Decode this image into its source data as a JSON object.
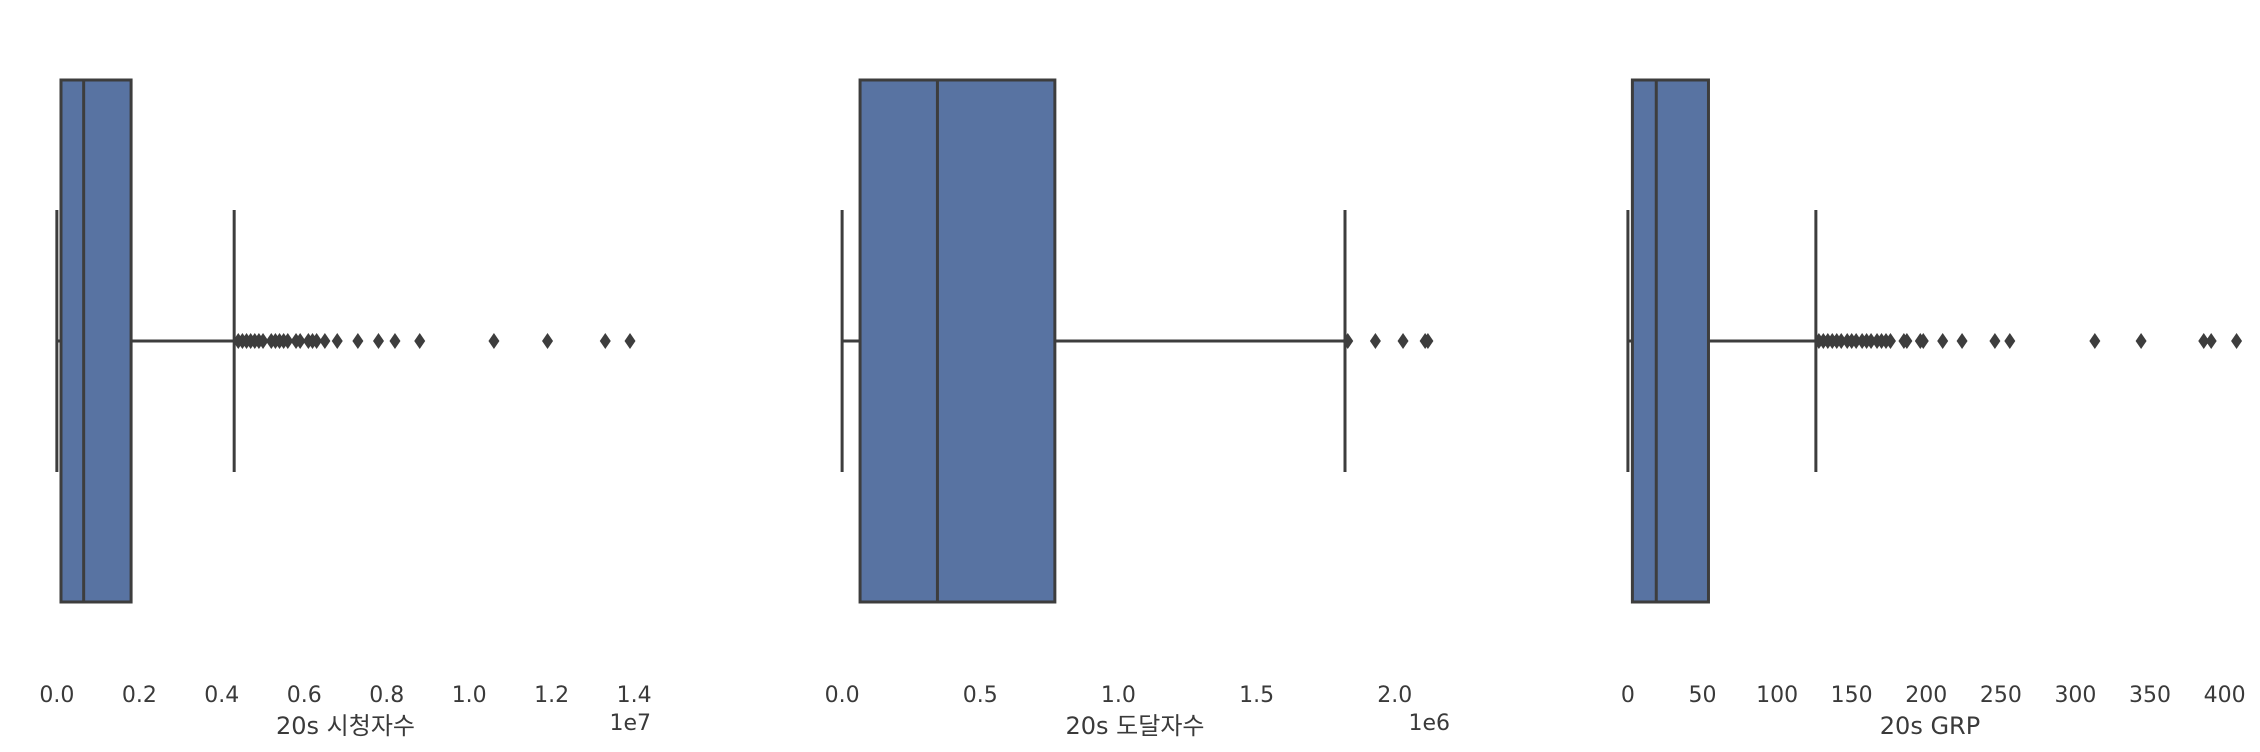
{
  "chart_data": [
    {
      "type": "boxplot",
      "orientation": "horizontal",
      "xlabel": "20s 시청자수",
      "offset_label": "1e7",
      "xlim": [
        -0.07,
        1.47
      ],
      "xticks": [
        0.0,
        0.2,
        0.4,
        0.6,
        0.8,
        1.0,
        1.2,
        1.4
      ],
      "tick_labels": [
        "0.0",
        "0.2",
        "0.4",
        "0.6",
        "0.8",
        "1.0",
        "1.2",
        "1.4"
      ],
      "stats": {
        "whislo": 0.0,
        "q1": 0.01,
        "median": 0.065,
        "q3": 0.18,
        "whishi": 0.43
      },
      "fliers": [
        0.44,
        0.45,
        0.46,
        0.47,
        0.48,
        0.49,
        0.5,
        0.52,
        0.53,
        0.54,
        0.55,
        0.56,
        0.58,
        0.59,
        0.61,
        0.62,
        0.63,
        0.65,
        0.68,
        0.73,
        0.78,
        0.82,
        0.88,
        1.06,
        1.19,
        1.33,
        1.39
      ],
      "color": "#5873a2"
    },
    {
      "type": "boxplot",
      "orientation": "horizontal",
      "xlabel": "20s 도달자수",
      "offset_label": "1e6",
      "xlim": [
        -0.08,
        2.2
      ],
      "xticks": [
        0.0,
        0.5,
        1.0,
        1.5,
        2.0
      ],
      "tick_labels": [
        "0.0",
        "0.5",
        "1.0",
        "1.5",
        "2.0"
      ],
      "stats": {
        "whislo": 0.0,
        "q1": 0.065,
        "median": 0.345,
        "q3": 0.77,
        "whishi": 1.82
      },
      "fliers": [
        1.83,
        1.93,
        2.03,
        2.11,
        2.12
      ],
      "color": "#5873a2"
    },
    {
      "type": "boxplot",
      "orientation": "horizontal",
      "xlabel": "20s GRP",
      "offset_label": "",
      "xlim": [
        -10,
        415
      ],
      "xticks": [
        0,
        50,
        100,
        150,
        200,
        250,
        300,
        350,
        400
      ],
      "tick_labels": [
        "0",
        "50",
        "100",
        "150",
        "200",
        "250",
        "300",
        "350",
        "400"
      ],
      "stats": {
        "whislo": 0.0,
        "q1": 3,
        "median": 19,
        "q3": 54,
        "whishi": 126
      },
      "fliers": [
        128,
        131,
        134,
        137,
        140,
        143,
        147,
        150,
        153,
        157,
        160,
        163,
        167,
        170,
        173,
        176,
        185,
        187,
        196,
        198,
        211,
        224,
        246,
        256,
        313,
        344,
        386,
        391,
        408
      ],
      "color": "#5873a2"
    }
  ]
}
